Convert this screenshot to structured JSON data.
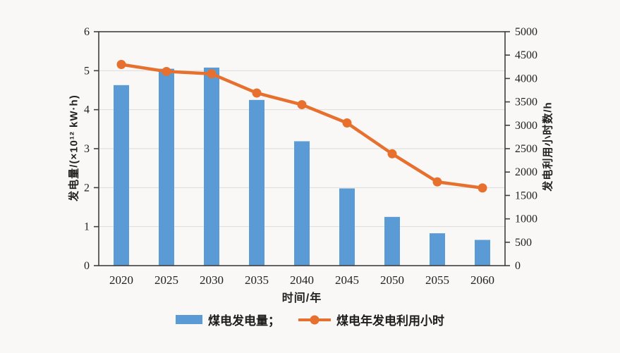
{
  "page": {
    "background": "#f9f8f6"
  },
  "chart_data": {
    "type": "combo-bar-line",
    "categories": [
      "2020",
      "2025",
      "2030",
      "2035",
      "2040",
      "2045",
      "2050",
      "2055",
      "2060"
    ],
    "series": [
      {
        "name": "煤电发电量",
        "type": "bar",
        "axis": "left",
        "color": "#5B9BD5",
        "values": [
          4.63,
          5.05,
          5.08,
          4.25,
          3.19,
          1.98,
          1.25,
          0.83,
          0.66
        ]
      },
      {
        "name": "煤电年发电利用小时",
        "type": "line",
        "axis": "right",
        "color": "#E8702E",
        "values": [
          4300,
          4150,
          4100,
          3690,
          3440,
          3050,
          2390,
          1790,
          1660
        ]
      }
    ],
    "xlabel": "时间/年",
    "ylabel_left": "发电量/(×10¹² kW·h)",
    "ylabel_right": "发电利用小时数/h",
    "ylim_left": [
      0,
      6
    ],
    "yticks_left": [
      0,
      1,
      2,
      3,
      4,
      5,
      6
    ],
    "ylim_right": [
      0,
      5000
    ],
    "yticks_right": [
      0,
      500,
      1000,
      1500,
      2000,
      2500,
      3000,
      3500,
      4000,
      4500,
      5000
    ],
    "grid": "horizontal-on-left-integer-ticks",
    "legend_position": "bottom-center",
    "legend": {
      "bar_label": "煤电发电量；",
      "line_label": "煤电年发电利用小时"
    },
    "colors": {
      "bar": "#5B9BD5",
      "line": "#E8702E",
      "frame": "#3f3f3f",
      "gridline": "#dcdcdc",
      "tick_text": "#222222"
    }
  }
}
